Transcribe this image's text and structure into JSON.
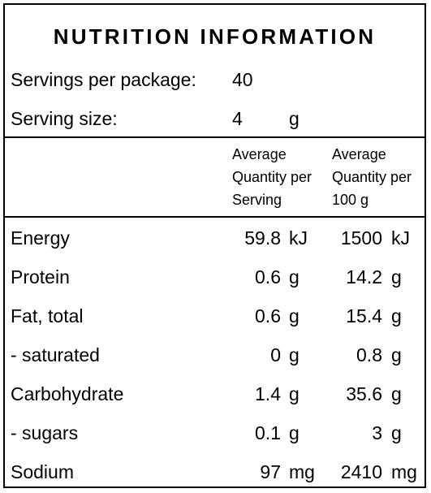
{
  "title": "NUTRITION INFORMATION",
  "servings": {
    "label": "Servings per package:",
    "value": "40"
  },
  "serving_size": {
    "label": "Serving size:",
    "value": "4",
    "unit": "g"
  },
  "columns": {
    "per_serving": [
      "Average",
      "Quantity per",
      "Serving"
    ],
    "per_100g": [
      "Average",
      "Quantity per",
      "100 g"
    ]
  },
  "rows": [
    {
      "name": "Energy",
      "serving": "59.8",
      "serving_unit": "kJ",
      "per100": "1500",
      "per100_unit": "kJ"
    },
    {
      "name": "Protein",
      "serving": "0.6",
      "serving_unit": "g",
      "per100": "14.2",
      "per100_unit": "g"
    },
    {
      "name": "Fat, total",
      "serving": "0.6",
      "serving_unit": "g",
      "per100": "15.4",
      "per100_unit": "g"
    },
    {
      "name": "- saturated",
      "serving": "0",
      "serving_unit": "g",
      "per100": "0.8",
      "per100_unit": "g"
    },
    {
      "name": "Carbohydrate",
      "serving": "1.4",
      "serving_unit": "g",
      "per100": "35.6",
      "per100_unit": "g"
    },
    {
      "name": "- sugars",
      "serving": "0.1",
      "serving_unit": "g",
      "per100": "3",
      "per100_unit": "g"
    },
    {
      "name": "Sodium",
      "serving": "97",
      "serving_unit": "mg",
      "per100": "2410",
      "per100_unit": "mg"
    }
  ]
}
